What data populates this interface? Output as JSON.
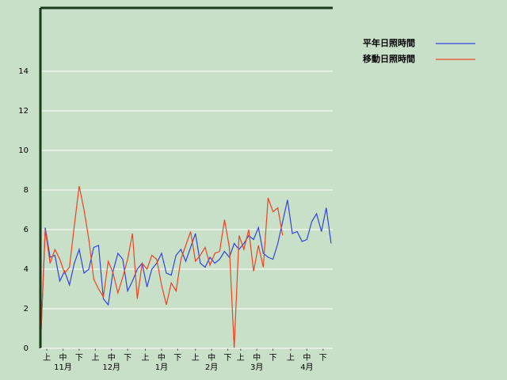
{
  "chart_data": {
    "type": "line",
    "x": [
      0,
      3,
      6,
      9,
      12,
      15,
      18,
      21,
      24,
      27,
      30,
      33,
      36,
      39,
      42,
      45,
      48,
      51,
      54,
      57,
      60,
      63,
      66,
      69,
      72,
      75,
      78,
      81,
      84,
      87,
      90,
      93,
      96,
      99,
      102,
      105,
      108,
      111,
      114,
      117,
      120,
      123,
      126,
      129,
      132,
      135,
      138,
      141,
      144,
      147,
      150,
      153,
      156,
      159,
      162,
      165,
      168,
      171,
      174,
      177,
      180
    ],
    "series": [
      {
        "name": "平年日照時間",
        "color": "#3344dd",
        "values": [
          0,
          6.1,
          4.6,
          4.7,
          3.4,
          3.9,
          3.2,
          4.3,
          5.0,
          3.8,
          4.0,
          5.1,
          5.2,
          2.5,
          2.2,
          3.9,
          4.8,
          4.5,
          2.9,
          3.4,
          4.0,
          4.3,
          3.1,
          4.0,
          4.3,
          4.8,
          3.8,
          3.7,
          4.7,
          5.0,
          4.4,
          5.1,
          5.8,
          4.3,
          4.1,
          4.6,
          4.3,
          4.5,
          4.9,
          4.6,
          5.3,
          5.0,
          5.3,
          5.7,
          5.5,
          6.1,
          4.8,
          4.6,
          4.5,
          5.3,
          6.4,
          7.5,
          5.8,
          5.9,
          5.4,
          5.5,
          6.4,
          6.8,
          5.9,
          7.1,
          5.3
        ]
      },
      {
        "name": "移動日照時間",
        "color": "#ee4422",
        "values": [
          0,
          6.0,
          4.3,
          5.0,
          4.5,
          3.8,
          4.1,
          6.2,
          8.2,
          7.0,
          5.5,
          3.5,
          3.0,
          2.6,
          4.4,
          3.8,
          2.8,
          3.6,
          4.5,
          5.8,
          2.5,
          4.3,
          4.0,
          4.7,
          4.5,
          3.2,
          2.2,
          3.3,
          2.9,
          4.5,
          5.2,
          5.9,
          4.4,
          4.7,
          5.1,
          4.2,
          4.8,
          4.9,
          6.5,
          5.1,
          0,
          5.7,
          5.0,
          6.0,
          3.9,
          5.2,
          4.1,
          7.6,
          6.9,
          7.1,
          5.7,
          null,
          null,
          null,
          null,
          null,
          null,
          null,
          null,
          null,
          null
        ]
      }
    ],
    "xlim": [
      0,
      181
    ],
    "xticks": [
      {
        "value": 4,
        "label": "上"
      },
      {
        "value": 14,
        "label": "中"
      },
      {
        "value": 24,
        "label": "下"
      },
      {
        "value": 34,
        "label": "上"
      },
      {
        "value": 44,
        "label": "中"
      },
      {
        "value": 54,
        "label": "下"
      },
      {
        "value": 65,
        "label": "上"
      },
      {
        "value": 75,
        "label": "中"
      },
      {
        "value": 85,
        "label": "下"
      },
      {
        "value": 96,
        "label": "上"
      },
      {
        "value": 106,
        "label": "中"
      },
      {
        "value": 116,
        "label": "下"
      },
      {
        "value": 124,
        "label": "上"
      },
      {
        "value": 134,
        "label": "中"
      },
      {
        "value": 144,
        "label": "下"
      },
      {
        "value": 155,
        "label": "上"
      },
      {
        "value": 165,
        "label": "中"
      },
      {
        "value": 175,
        "label": "下"
      }
    ],
    "month_ticks": [
      {
        "value": 14,
        "label": "11月"
      },
      {
        "value": 44,
        "label": "12月"
      },
      {
        "value": 75,
        "label": "1月"
      },
      {
        "value": 106,
        "label": "2月"
      },
      {
        "value": 134,
        "label": "3月"
      },
      {
        "value": 165,
        "label": "4月"
      }
    ],
    "ylim": [
      0,
      17.2
    ],
    "yticks": [
      0,
      2,
      4,
      6,
      8,
      10,
      12,
      14
    ],
    "grid": true
  }
}
